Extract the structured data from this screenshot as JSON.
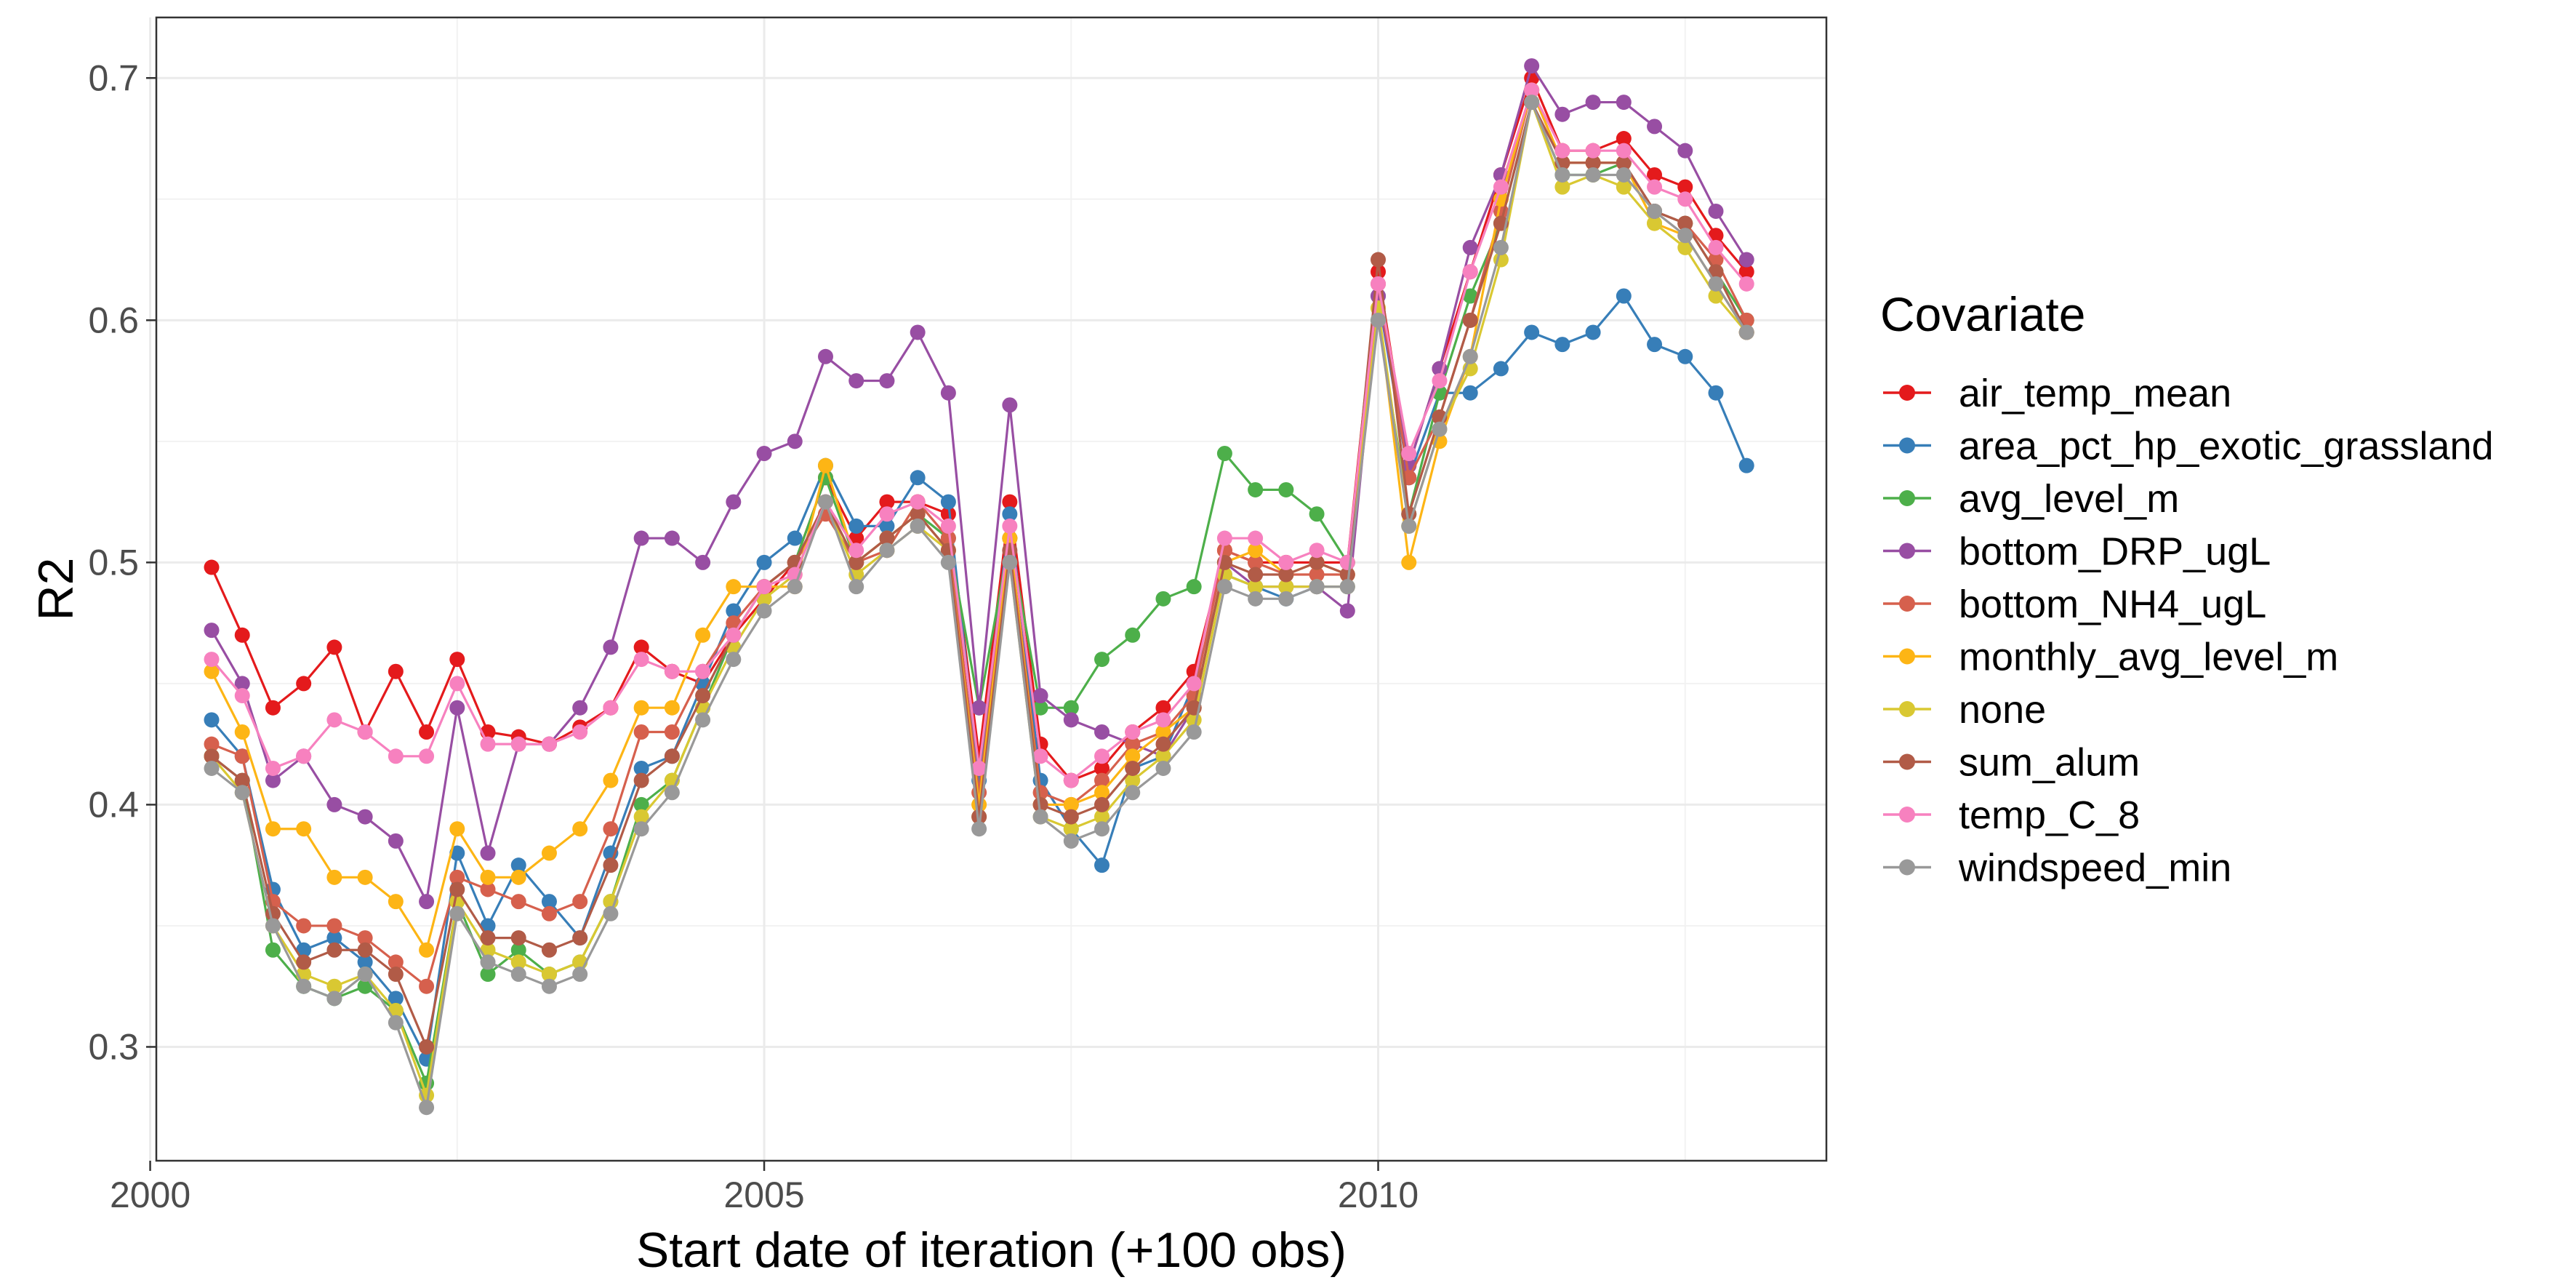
{
  "chart_data": {
    "type": "line",
    "xlabel": "Start date of iteration (+100 obs)",
    "ylabel": "R2",
    "xlim": [
      2000.05,
      2013.65
    ],
    "ylim": [
      0.253,
      0.725
    ],
    "x_ticks": [
      2000,
      2005,
      2010
    ],
    "x_tick_labels": [
      "2000",
      "2005",
      "2010"
    ],
    "y_ticks": [
      0.3,
      0.4,
      0.5,
      0.6,
      0.7
    ],
    "y_tick_labels": [
      "0.3",
      "0.4",
      "0.5",
      "0.6",
      "0.7"
    ],
    "grid": true,
    "legend_title": "Covariate",
    "legend_position": "right",
    "x": [
      2000.5,
      2000.75,
      2001.0,
      2001.25,
      2001.5,
      2001.75,
      2002.0,
      2002.25,
      2002.5,
      2002.75,
      2003.0,
      2003.25,
      2003.5,
      2003.75,
      2004.0,
      2004.25,
      2004.5,
      2004.75,
      2005.0,
      2005.25,
      2005.5,
      2005.75,
      2006.0,
      2006.25,
      2006.5,
      2006.75,
      2007.0,
      2007.25,
      2007.5,
      2007.75,
      2008.0,
      2008.25,
      2008.5,
      2008.75,
      2009.0,
      2009.25,
      2009.5,
      2009.75,
      2010.0,
      2010.25,
      2010.5,
      2010.75,
      2011.0,
      2011.25,
      2011.5,
      2011.75,
      2012.0,
      2012.25,
      2012.5,
      2012.75,
      2013.0
    ],
    "series": [
      {
        "name": "air_temp_mean",
        "color": "#E41A1C",
        "values": [
          0.498,
          0.47,
          0.44,
          0.45,
          0.465,
          0.43,
          0.455,
          0.43,
          0.46,
          0.43,
          0.428,
          0.425,
          0.432,
          0.44,
          0.465,
          0.455,
          0.45,
          0.47,
          0.485,
          0.5,
          0.535,
          0.51,
          0.525,
          0.525,
          0.52,
          0.42,
          0.525,
          0.425,
          0.41,
          0.415,
          0.43,
          0.44,
          0.455,
          0.505,
          0.5,
          0.5,
          0.5,
          0.5,
          0.62,
          0.54,
          0.58,
          0.62,
          0.66,
          0.7,
          0.67,
          0.67,
          0.675,
          0.66,
          0.655,
          0.635,
          0.62
        ]
      },
      {
        "name": "area_pct_hp_exotic_grassland",
        "color": "#377EB8",
        "values": [
          0.435,
          0.42,
          0.365,
          0.34,
          0.345,
          0.335,
          0.32,
          0.295,
          0.38,
          0.35,
          0.375,
          0.36,
          0.345,
          0.38,
          0.415,
          0.42,
          0.45,
          0.48,
          0.5,
          0.51,
          0.54,
          0.515,
          0.515,
          0.535,
          0.525,
          0.41,
          0.52,
          0.41,
          0.39,
          0.375,
          0.415,
          0.42,
          0.45,
          0.495,
          0.49,
          0.485,
          0.49,
          0.49,
          0.61,
          0.535,
          0.57,
          0.57,
          0.58,
          0.595,
          0.59,
          0.595,
          0.61,
          0.59,
          0.585,
          0.57,
          0.54
        ]
      },
      {
        "name": "avg_level_m",
        "color": "#4DAF4A",
        "values": [
          0.42,
          0.41,
          0.34,
          0.325,
          0.32,
          0.325,
          0.315,
          0.285,
          0.36,
          0.33,
          0.34,
          0.33,
          0.335,
          0.36,
          0.4,
          0.41,
          0.44,
          0.47,
          0.49,
          0.5,
          0.535,
          0.5,
          0.51,
          0.52,
          0.51,
          0.44,
          0.51,
          0.44,
          0.44,
          0.46,
          0.47,
          0.485,
          0.49,
          0.545,
          0.53,
          0.53,
          0.52,
          0.5,
          0.6,
          0.52,
          0.57,
          0.61,
          0.64,
          0.69,
          0.66,
          0.66,
          0.665,
          0.645,
          0.64,
          0.62,
          0.6
        ]
      },
      {
        "name": "bottom_DRP_ugL",
        "color": "#984EA3",
        "values": [
          0.472,
          0.45,
          0.41,
          0.42,
          0.4,
          0.395,
          0.385,
          0.36,
          0.44,
          0.38,
          0.425,
          0.425,
          0.44,
          0.465,
          0.51,
          0.51,
          0.5,
          0.525,
          0.545,
          0.55,
          0.585,
          0.575,
          0.575,
          0.595,
          0.57,
          0.44,
          0.565,
          0.445,
          0.435,
          0.43,
          0.425,
          0.42,
          0.44,
          0.5,
          0.49,
          0.49,
          0.49,
          0.48,
          0.61,
          0.54,
          0.58,
          0.63,
          0.66,
          0.705,
          0.685,
          0.69,
          0.69,
          0.68,
          0.67,
          0.645,
          0.625
        ]
      },
      {
        "name": "bottom_NH4_ugL",
        "color": "#D6604D",
        "values": [
          0.425,
          0.42,
          0.36,
          0.35,
          0.35,
          0.345,
          0.335,
          0.325,
          0.37,
          0.365,
          0.36,
          0.355,
          0.36,
          0.39,
          0.43,
          0.43,
          0.455,
          0.475,
          0.49,
          0.5,
          0.52,
          0.5,
          0.505,
          0.525,
          0.51,
          0.405,
          0.51,
          0.405,
          0.4,
          0.41,
          0.425,
          0.43,
          0.445,
          0.505,
          0.5,
          0.495,
          0.495,
          0.495,
          0.615,
          0.535,
          0.56,
          0.6,
          0.645,
          0.695,
          0.665,
          0.665,
          0.665,
          0.645,
          0.64,
          0.625,
          0.6
        ]
      },
      {
        "name": "monthly_avg_level_m",
        "color": "#FDB515",
        "values": [
          0.455,
          0.43,
          0.39,
          0.39,
          0.37,
          0.37,
          0.36,
          0.34,
          0.39,
          0.37,
          0.37,
          0.38,
          0.39,
          0.41,
          0.44,
          0.44,
          0.47,
          0.49,
          0.49,
          0.49,
          0.54,
          0.5,
          0.51,
          0.52,
          0.505,
          0.4,
          0.51,
          0.4,
          0.4,
          0.405,
          0.42,
          0.43,
          0.44,
          0.5,
          0.505,
          0.495,
          0.5,
          0.495,
          0.605,
          0.5,
          0.55,
          0.585,
          0.65,
          0.695,
          0.665,
          0.665,
          0.665,
          0.64,
          0.635,
          0.615,
          0.595
        ]
      },
      {
        "name": "none",
        "color": "#D9C832",
        "values": [
          0.42,
          0.405,
          0.35,
          0.33,
          0.325,
          0.33,
          0.315,
          0.28,
          0.36,
          0.34,
          0.335,
          0.33,
          0.335,
          0.36,
          0.395,
          0.41,
          0.44,
          0.465,
          0.485,
          0.495,
          0.525,
          0.495,
          0.505,
          0.515,
          0.505,
          0.395,
          0.5,
          0.395,
          0.39,
          0.395,
          0.41,
          0.42,
          0.435,
          0.495,
          0.49,
          0.49,
          0.49,
          0.49,
          0.605,
          0.515,
          0.555,
          0.58,
          0.625,
          0.69,
          0.655,
          0.66,
          0.655,
          0.64,
          0.63,
          0.61,
          0.595
        ]
      },
      {
        "name": "sum_alum",
        "color": "#B15B47",
        "values": [
          0.42,
          0.41,
          0.355,
          0.335,
          0.34,
          0.34,
          0.33,
          0.3,
          0.365,
          0.345,
          0.345,
          0.34,
          0.345,
          0.375,
          0.41,
          0.42,
          0.445,
          0.47,
          0.49,
          0.5,
          0.525,
          0.5,
          0.51,
          0.52,
          0.505,
          0.395,
          0.505,
          0.4,
          0.395,
          0.4,
          0.415,
          0.425,
          0.44,
          0.5,
          0.495,
          0.495,
          0.5,
          0.495,
          0.625,
          0.52,
          0.56,
          0.6,
          0.64,
          0.69,
          0.665,
          0.665,
          0.665,
          0.645,
          0.64,
          0.62,
          0.595
        ]
      },
      {
        "name": "temp_C_8",
        "color": "#F781BF",
        "values": [
          0.46,
          0.445,
          0.415,
          0.42,
          0.435,
          0.43,
          0.42,
          0.42,
          0.45,
          0.425,
          0.425,
          0.425,
          0.43,
          0.44,
          0.46,
          0.455,
          0.455,
          0.47,
          0.49,
          0.495,
          0.525,
          0.505,
          0.52,
          0.525,
          0.515,
          0.415,
          0.515,
          0.42,
          0.41,
          0.42,
          0.43,
          0.435,
          0.45,
          0.51,
          0.51,
          0.5,
          0.505,
          0.5,
          0.615,
          0.545,
          0.575,
          0.62,
          0.655,
          0.695,
          0.67,
          0.67,
          0.67,
          0.655,
          0.65,
          0.63,
          0.615
        ]
      },
      {
        "name": "windspeed_min",
        "color": "#999999",
        "values": [
          0.415,
          0.405,
          0.35,
          0.325,
          0.32,
          0.33,
          0.31,
          0.275,
          0.355,
          0.335,
          0.33,
          0.325,
          0.33,
          0.355,
          0.39,
          0.405,
          0.435,
          0.46,
          0.48,
          0.49,
          0.525,
          0.49,
          0.505,
          0.515,
          0.5,
          0.39,
          0.5,
          0.395,
          0.385,
          0.39,
          0.405,
          0.415,
          0.43,
          0.49,
          0.485,
          0.485,
          0.49,
          0.49,
          0.6,
          0.515,
          0.555,
          0.585,
          0.63,
          0.69,
          0.66,
          0.66,
          0.66,
          0.645,
          0.635,
          0.615,
          0.595
        ]
      }
    ]
  }
}
